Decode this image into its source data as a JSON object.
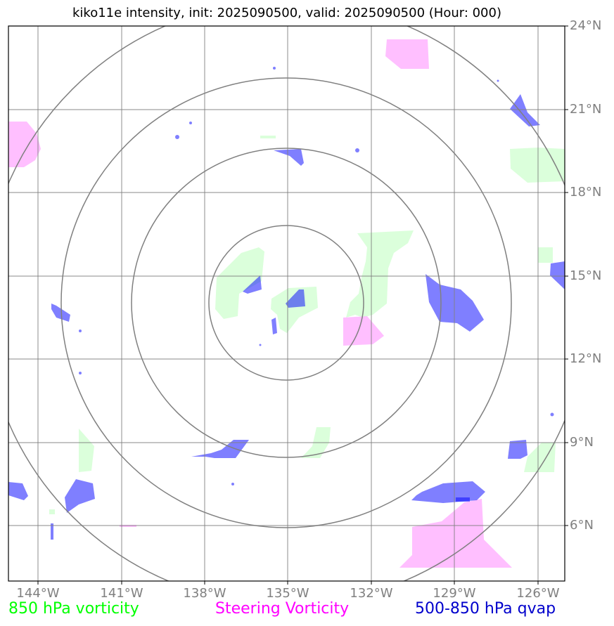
{
  "title": "kiko11e intensity, init: 2025090500, valid: 2025090500 (Hour: 000)",
  "lat_labels": [
    "24°N",
    "21°N",
    "18°N",
    "15°N",
    "12°N",
    "9°N",
    "6°N"
  ],
  "lon_labels": [
    "144°W",
    "141°W",
    "138°W",
    "135°W",
    "132°W",
    "129°W",
    "126°W"
  ],
  "legend": {
    "vorticity_850": "850 hPa vorticity",
    "steering": "Steering Vorticity",
    "qvap": "500-850 hPa qvap"
  },
  "colors": {
    "vorticity_850": "#00ff00",
    "steering": "#ff00ff",
    "qvap": "#0000ff",
    "grid": "#808080"
  }
}
